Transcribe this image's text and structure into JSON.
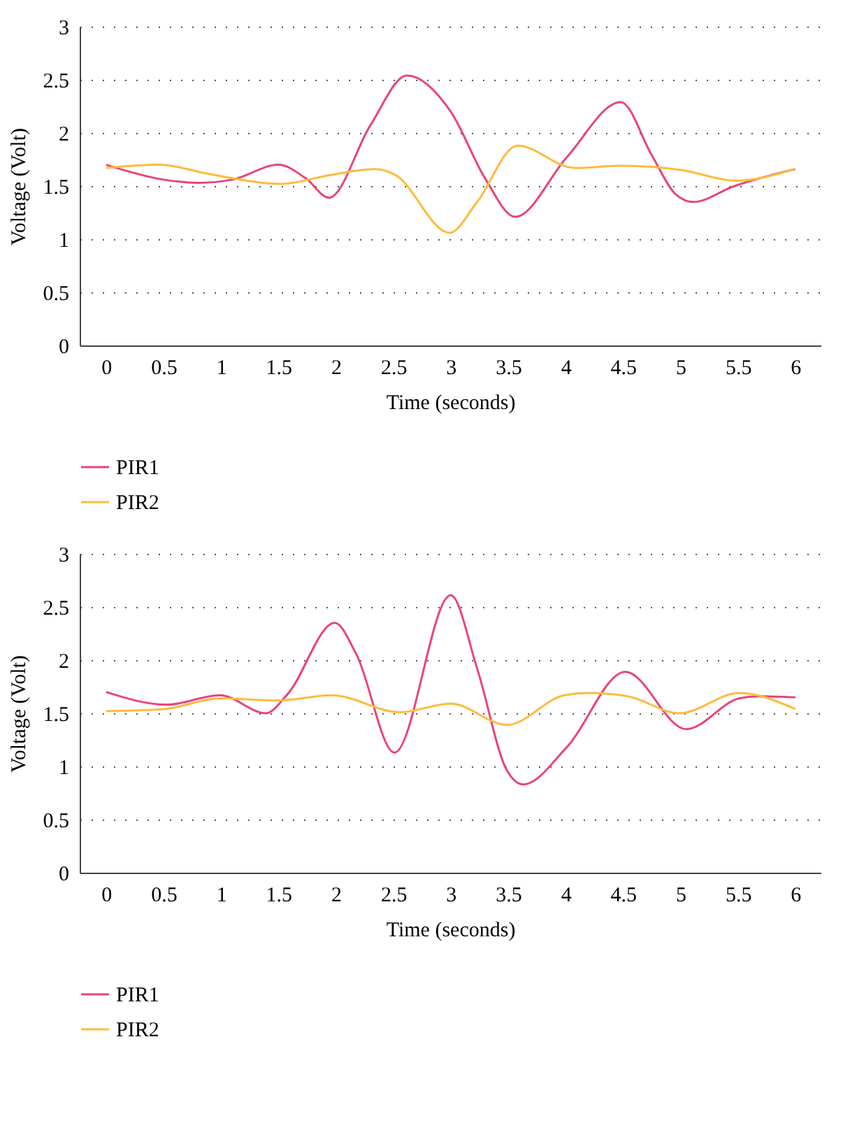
{
  "chart_data": [
    {
      "type": "line",
      "xlabel": "Time (seconds)",
      "ylabel": "Voltage (Volt)",
      "xlim": [
        -0.23,
        6.22
      ],
      "xticks": [
        0,
        0.5,
        1,
        1.5,
        2,
        2.5,
        3,
        3.5,
        4,
        4.5,
        5,
        5.5,
        6
      ],
      "ylim": [
        0,
        3
      ],
      "yticks": [
        0,
        0.5,
        1,
        1.5,
        2,
        2.5,
        3
      ],
      "grid": "y",
      "legend": "bottom left",
      "marker": "none",
      "line_style": "solid",
      "series": [
        {
          "name": "PIR1",
          "color": "#e8457a",
          "x": [
            0,
            0.5,
            0.8,
            1.1,
            1.5,
            1.74,
            1.94,
            2.3,
            2.62,
            3.0,
            3.3,
            3.56,
            4.01,
            4.48,
            4.75,
            4.96,
            5.11,
            5.47,
            6
          ],
          "values": [
            1.7,
            1.56,
            1.53,
            1.56,
            1.7,
            1.57,
            1.39,
            2.07,
            2.54,
            2.2,
            1.57,
            1.21,
            1.77,
            2.29,
            1.79,
            1.42,
            1.35,
            1.5,
            1.66
          ]
        },
        {
          "name": "PIR2",
          "color": "#fdbb3c",
          "x": [
            0,
            0.46,
            0.91,
            1.52,
            1.94,
            2.34,
            2.51,
            2.99,
            3.23,
            3.58,
            4.08,
            4.48,
            5.01,
            5.48,
            6
          ],
          "values": [
            1.67,
            1.7,
            1.61,
            1.52,
            1.6,
            1.66,
            1.61,
            1.06,
            1.35,
            1.88,
            1.67,
            1.69,
            1.65,
            1.55,
            1.66
          ]
        }
      ]
    },
    {
      "type": "line",
      "xlabel": "Time (seconds)",
      "ylabel": "Voltage (Volt)",
      "xlim": [
        -0.23,
        6.22
      ],
      "xticks": [
        0,
        0.5,
        1,
        1.5,
        2,
        2.5,
        3,
        3.5,
        4,
        4.5,
        5,
        5.5,
        6
      ],
      "ylim": [
        0,
        3
      ],
      "yticks": [
        0,
        0.5,
        1,
        1.5,
        2,
        2.5,
        3
      ],
      "grid": "y",
      "legend": "bottom left",
      "marker": "none",
      "line_style": "solid",
      "series": [
        {
          "name": "PIR1",
          "color": "#e8457a",
          "x": [
            0,
            0.53,
            0.99,
            1.39,
            1.58,
            1.99,
            2.18,
            2.51,
            3.0,
            3.23,
            3.49,
            3.63,
            4.01,
            4.52,
            5.05,
            5.51,
            5.68,
            6
          ],
          "values": [
            1.7,
            1.58,
            1.67,
            1.5,
            1.68,
            2.35,
            2.05,
            1.13,
            2.61,
            1.92,
            0.96,
            0.83,
            1.18,
            1.89,
            1.35,
            1.64,
            1.66,
            1.65
          ]
        },
        {
          "name": "PIR2",
          "color": "#fdbb3c",
          "x": [
            0,
            0.51,
            0.99,
            1.5,
            1.96,
            2.56,
            3.0,
            3.49,
            3.99,
            4.2,
            4.54,
            4.99,
            5.51,
            6
          ],
          "values": [
            1.52,
            1.54,
            1.64,
            1.62,
            1.67,
            1.51,
            1.59,
            1.39,
            1.67,
            1.69,
            1.66,
            1.5,
            1.69,
            1.54
          ]
        }
      ]
    }
  ]
}
